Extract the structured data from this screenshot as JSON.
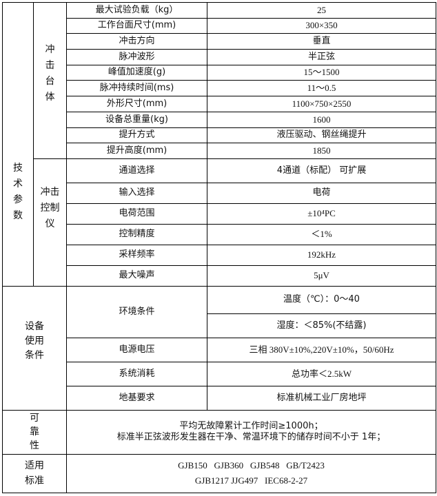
{
  "sections": {
    "tech": "技\n术\n参\n数",
    "table": "冲\n击\n台\n体",
    "controller": "冲击\n控制\n仪",
    "usage": "设备\n使用\n条件",
    "reliability": "可\n靠\n性",
    "standards": "适用\n标准"
  },
  "table_rows": [
    {
      "label": "最大试验负载（kg）",
      "value": "25"
    },
    {
      "label": "工作台面尺寸(mm)",
      "value": "300×350"
    },
    {
      "label": "冲击方向",
      "value": "垂直"
    },
    {
      "label": "脉冲波形",
      "value": "半正弦"
    },
    {
      "label": "峰值加速度(g)",
      "value": "15～1500"
    },
    {
      "label": "脉冲持续时间(ms)",
      "value": "11～0.5"
    },
    {
      "label": "外形尺寸(mm)",
      "value": "1100×750×2550"
    },
    {
      "label": "设备总重量(kg)",
      "value": "1600"
    },
    {
      "label": "提升方式",
      "value": "液压驱动、钢丝绳提升"
    },
    {
      "label": "提升高度(mm)",
      "value": "1850"
    }
  ],
  "controller_rows": [
    {
      "label": "通道选择",
      "value": "4通道（标配） 可扩展"
    },
    {
      "label": "输入选择",
      "value": "电荷"
    },
    {
      "label": "电荷范围",
      "value": "±10⁴PC"
    },
    {
      "label": "控制精度",
      "value": "＜1%"
    },
    {
      "label": "采样频率",
      "value": "192kHz"
    },
    {
      "label": "最大噪声",
      "value": "5μV"
    }
  ],
  "usage_rows": {
    "env_label": "环境条件",
    "temp": "温度（℃）：0～40",
    "humidity": "湿度：＜85%(不结露)",
    "power_label": "电源电压",
    "power": "三相 380V±10%,220V±10%，50/60Hz",
    "consumption_label": "系统消耗",
    "consumption": "总功率＜2.5kW",
    "foundation_label": "地基要求",
    "foundation": "标准机械工业厂房地坪"
  },
  "reliability": {
    "line1": "平均无故障累计工作时间≥1000h；",
    "line2": "标准半正弦波形发生器在干净、常温环境下的储存时间不小于 1年；"
  },
  "standards": {
    "line1": "GJB150   GJB360   GJB548   GB/T2423",
    "line2": "GJB1217 JJG497   IEC68-2-27"
  }
}
